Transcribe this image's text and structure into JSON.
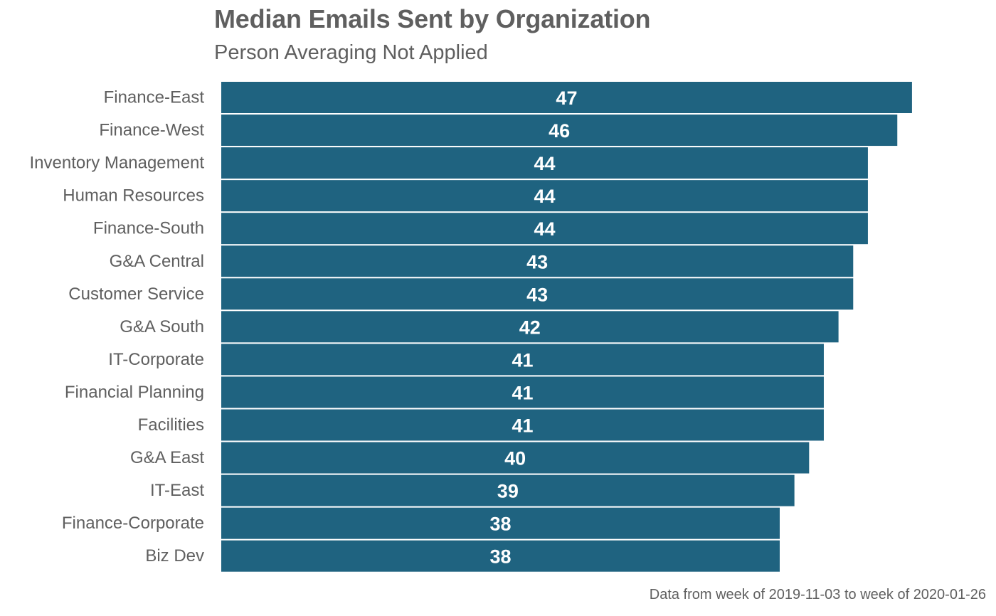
{
  "chart_data": {
    "type": "bar",
    "orientation": "horizontal",
    "title": "Median Emails Sent by Organization",
    "subtitle": "Person Averaging Not Applied",
    "caption": "Data from week of 2019-11-03 to week of 2020-01-26",
    "categories": [
      "Finance-East",
      "Finance-West",
      "Inventory Management",
      "Human Resources",
      "Finance-South",
      "G&A Central",
      "Customer Service",
      "G&A South",
      "IT-Corporate",
      "Financial Planning",
      "Facilities",
      "G&A East",
      "IT-East",
      "Finance-Corporate",
      "Biz Dev"
    ],
    "values": [
      47,
      46,
      44,
      44,
      44,
      43,
      43,
      42,
      41,
      41,
      41,
      40,
      39,
      38,
      38
    ],
    "xlim": [
      0,
      51.7
    ],
    "grid": false,
    "legend": "none",
    "bar_color": "#1f6380",
    "value_label_color": "#ffffff"
  }
}
